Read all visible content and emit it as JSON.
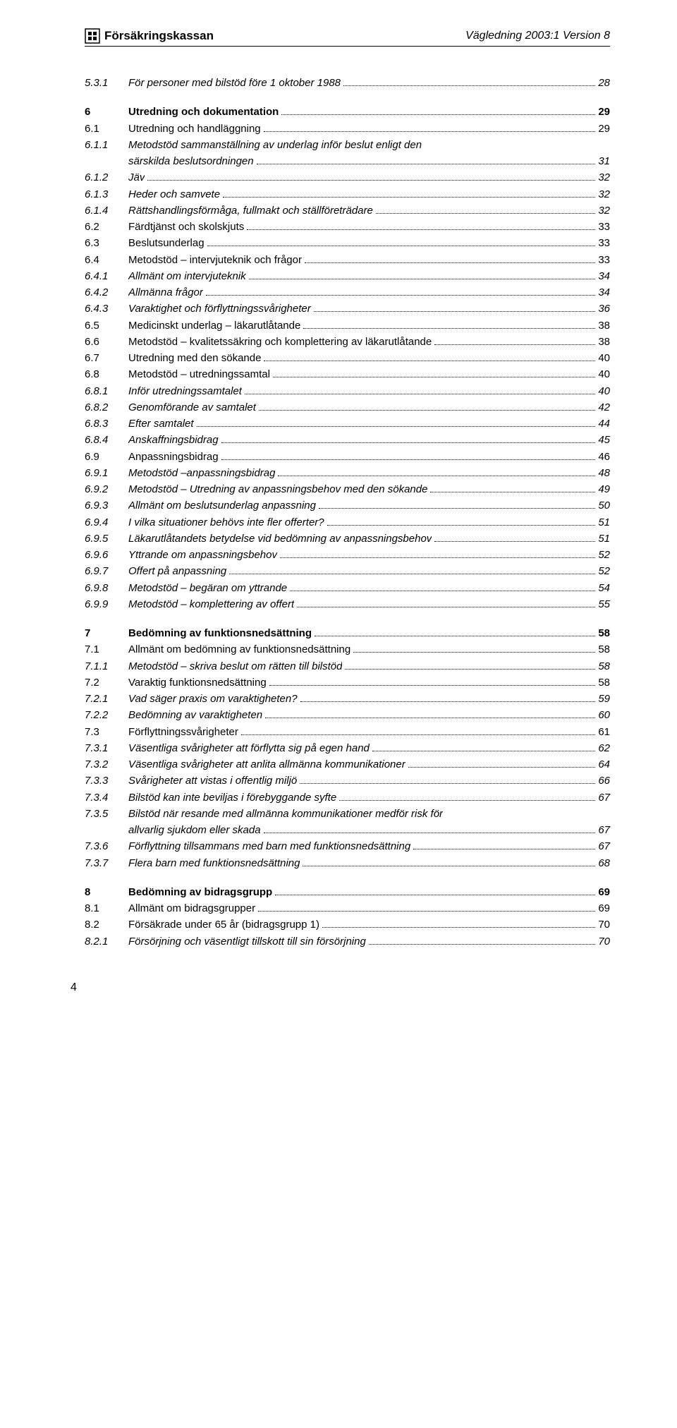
{
  "header": {
    "brand": "Försäkringskassan",
    "doc_ref": "Vägledning 2003:1 Version 8"
  },
  "toc": [
    {
      "num": "5.3.1",
      "title": "För personer med bilstöd före 1 oktober 1988",
      "page": "28",
      "style": "italic"
    },
    {
      "num": "6",
      "title": "Utredning och dokumentation",
      "page": "29",
      "style": "bold",
      "gap": true
    },
    {
      "num": "6.1",
      "title": "Utredning och handläggning",
      "page": "29"
    },
    {
      "num": "6.1.1",
      "title": "Metodstöd sammanställning av underlag inför beslut enligt den",
      "style": "italic",
      "nodots": true
    },
    {
      "num": "",
      "title": "särskilda beslutsordningen",
      "page": "31",
      "style": "italic",
      "cont": true
    },
    {
      "num": "6.1.2",
      "title": "Jäv",
      "page": "32",
      "style": "italic"
    },
    {
      "num": "6.1.3",
      "title": "Heder och samvete",
      "page": "32",
      "style": "italic"
    },
    {
      "num": "6.1.4",
      "title": "Rättshandlingsförmåga, fullmakt och ställföreträdare",
      "page": "32",
      "style": "italic"
    },
    {
      "num": "6.2",
      "title": "Färdtjänst och skolskjuts",
      "page": "33"
    },
    {
      "num": "6.3",
      "title": "Beslutsunderlag",
      "page": "33"
    },
    {
      "num": "6.4",
      "title": "Metodstöd – intervjuteknik och frågor",
      "page": "33"
    },
    {
      "num": "6.4.1",
      "title": "Allmänt om intervjuteknik",
      "page": "34",
      "style": "italic"
    },
    {
      "num": "6.4.2",
      "title": "Allmänna frågor",
      "page": "34",
      "style": "italic"
    },
    {
      "num": "6.4.3",
      "title": "Varaktighet och förflyttningssvårigheter",
      "page": "36",
      "style": "italic"
    },
    {
      "num": "6.5",
      "title": "Medicinskt underlag – läkarutlåtande",
      "page": "38"
    },
    {
      "num": "6.6",
      "title": "Metodstöd – kvalitetssäkring och komplettering av läkarutlåtande",
      "page": "38"
    },
    {
      "num": "6.7",
      "title": "Utredning med den sökande",
      "page": "40"
    },
    {
      "num": "6.8",
      "title": "Metodstöd – utredningssamtal",
      "page": "40"
    },
    {
      "num": "6.8.1",
      "title": "Inför utredningssamtalet",
      "page": "40",
      "style": "italic"
    },
    {
      "num": "6.8.2",
      "title": "Genomförande av samtalet",
      "page": "42",
      "style": "italic"
    },
    {
      "num": "6.8.3",
      "title": "Efter samtalet",
      "page": "44",
      "style": "italic"
    },
    {
      "num": "6.8.4",
      "title": "Anskaffningsbidrag",
      "page": "45",
      "style": "italic"
    },
    {
      "num": "6.9",
      "title": "Anpassningsbidrag",
      "page": "46"
    },
    {
      "num": "6.9.1",
      "title": "Metodstöd –anpassningsbidrag",
      "page": "48",
      "style": "italic"
    },
    {
      "num": "6.9.2",
      "title": "Metodstöd – Utredning av anpassningsbehov med den sökande",
      "page": "49",
      "style": "italic"
    },
    {
      "num": "6.9.3",
      "title": "Allmänt om beslutsunderlag anpassning",
      "page": "50",
      "style": "italic"
    },
    {
      "num": "6.9.4",
      "title": "I vilka situationer behövs inte fler offerter?",
      "page": "51",
      "style": "italic"
    },
    {
      "num": "6.9.5",
      "title": "Läkarutlåtandets betydelse vid bedömning av anpassningsbehov",
      "page": "51",
      "style": "italic"
    },
    {
      "num": "6.9.6",
      "title": "Yttrande om anpassningsbehov",
      "page": "52",
      "style": "italic"
    },
    {
      "num": "6.9.7",
      "title": "Offert på anpassning",
      "page": "52",
      "style": "italic"
    },
    {
      "num": "6.9.8",
      "title": "Metodstöd – begäran om yttrande",
      "page": "54",
      "style": "italic"
    },
    {
      "num": "6.9.9",
      "title": "Metodstöd – komplettering av offert",
      "page": "55",
      "style": "italic"
    },
    {
      "num": "7",
      "title": "Bedömning av funktionsnedsättning",
      "page": "58",
      "style": "bold",
      "gap": true
    },
    {
      "num": "7.1",
      "title": "Allmänt om bedömning av funktionsnedsättning",
      "page": "58"
    },
    {
      "num": "7.1.1",
      "title": "Metodstöd – skriva beslut om rätten till bilstöd",
      "page": "58",
      "style": "italic"
    },
    {
      "num": "7.2",
      "title": "Varaktig funktionsnedsättning",
      "page": "58"
    },
    {
      "num": "7.2.1",
      "title": "Vad säger praxis om varaktigheten?",
      "page": "59",
      "style": "italic"
    },
    {
      "num": "7.2.2",
      "title": "Bedömning av varaktigheten",
      "page": "60",
      "style": "italic"
    },
    {
      "num": "7.3",
      "title": "Förflyttningssvårigheter",
      "page": "61"
    },
    {
      "num": "7.3.1",
      "title": "Väsentliga svårigheter att förflytta sig på egen hand",
      "page": "62",
      "style": "italic"
    },
    {
      "num": "7.3.2",
      "title": "Väsentliga svårigheter att anlita allmänna kommunikationer",
      "page": "64",
      "style": "italic"
    },
    {
      "num": "7.3.3",
      "title": "Svårigheter att vistas i offentlig miljö",
      "page": "66",
      "style": "italic"
    },
    {
      "num": "7.3.4",
      "title": "Bilstöd kan inte beviljas i förebyggande syfte",
      "page": "67",
      "style": "italic"
    },
    {
      "num": "7.3.5",
      "title": "Bilstöd när resande med allmänna kommunikationer medför risk för",
      "style": "italic",
      "nodots": true
    },
    {
      "num": "",
      "title": "allvarlig sjukdom eller skada",
      "page": "67",
      "style": "italic",
      "cont": true
    },
    {
      "num": "7.3.6",
      "title": "Förflyttning tillsammans med barn med funktionsnedsättning",
      "page": "67",
      "style": "italic"
    },
    {
      "num": "7.3.7",
      "title": "Flera barn med funktionsnedsättning",
      "page": "68",
      "style": "italic"
    },
    {
      "num": "8",
      "title": "Bedömning av bidragsgrupp",
      "page": "69",
      "style": "bold",
      "gap": true
    },
    {
      "num": "8.1",
      "title": "Allmänt om bidragsgrupper",
      "page": "69"
    },
    {
      "num": "8.2",
      "title": "Försäkrade under 65 år (bidragsgrupp 1)",
      "page": "70"
    },
    {
      "num": "8.2.1",
      "title": "Försörjning och väsentligt tillskott till sin försörjning",
      "page": "70",
      "style": "italic"
    }
  ],
  "page_number": "4"
}
